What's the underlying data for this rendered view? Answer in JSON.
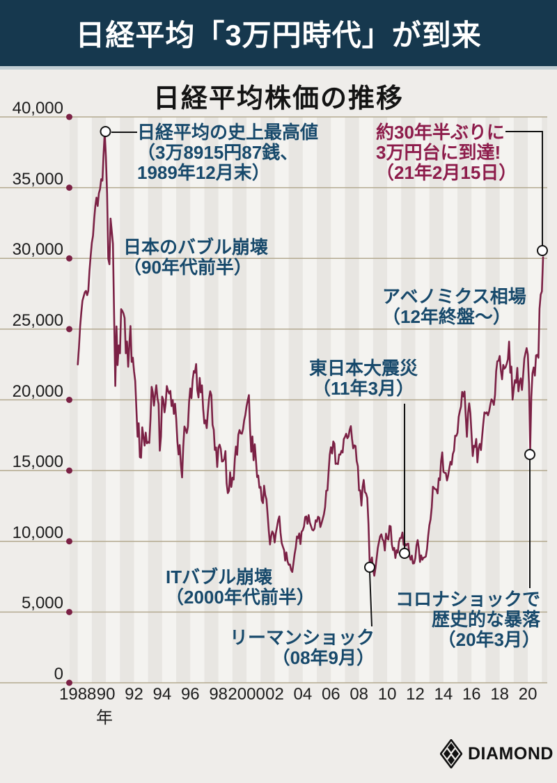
{
  "banner": {
    "title": "日経平均「3万円時代」が到来"
  },
  "chart": {
    "title": "日経平均株価の推移",
    "y_axis": {
      "labels": [
        "40,000",
        "35,000",
        "30,000",
        "25,000",
        "20,000",
        "15,000",
        "10,000",
        "5,000",
        "0"
      ]
    },
    "x_axis": {
      "labels": [
        "1988",
        "90",
        "92",
        "94",
        "96",
        "98",
        "2000",
        "02",
        "04",
        "06",
        "08",
        "10",
        "12",
        "14",
        "16",
        "18",
        "20"
      ],
      "unit": "年"
    },
    "annotations": {
      "peak": {
        "lines": [
          "日経平均の史上最高値",
          "（3万8915円87銭、",
          "1989年12月末）"
        ]
      },
      "reach30k": {
        "lines": [
          "約30年半ぶりに",
          "3万円台に到達!",
          "（21年2月15日）"
        ]
      },
      "bubble": {
        "lines": [
          "日本のバブル崩壊",
          "（90年代前半）"
        ]
      },
      "abenomics": {
        "lines": [
          "アベノミクス相場",
          "（12年終盤～）"
        ]
      },
      "tohoku": {
        "lines": [
          "東日本大震災",
          "（11年3月）"
        ]
      },
      "itbubble": {
        "lines": [
          "ITバブル崩壊",
          "（2000年代前半）"
        ]
      },
      "lehman": {
        "lines": [
          "リーマンショック",
          "（08年9月）"
        ]
      },
      "corona": {
        "lines": [
          "コロナショックで",
          "歴史的な暴落",
          "（20年3月）"
        ]
      }
    }
  },
  "footer": {
    "logo_text": "DIAMOND"
  },
  "colors": {
    "banner_bg": "#16384e",
    "line": "#7b2145",
    "dot": "#7b2145",
    "grid": "#b3a98f",
    "stripe_light": "#f4f3f0",
    "stripe_dark": "#e8e6e2",
    "blue_text": "#17496b",
    "red_text": "#8d1c4b",
    "callout_stroke": "#111111",
    "callout_fill": "#ffffff"
  },
  "chart_data": {
    "type": "line",
    "title": "日経平均株価の推移",
    "xlabel": "年",
    "ylabel": "",
    "ylim": [
      0,
      40000
    ],
    "y_ticks": [
      0,
      5000,
      10000,
      15000,
      20000,
      25000,
      30000,
      35000,
      40000
    ],
    "x_tick_years": [
      1988,
      1990,
      1992,
      1994,
      1996,
      1998,
      2000,
      2002,
      2004,
      2006,
      2008,
      2010,
      2012,
      2014,
      2016,
      2018,
      2020
    ],
    "x_range_years": [
      1988,
      2021.17
    ],
    "grid": true,
    "legend": "none",
    "series": [
      {
        "name": "日経平均株価",
        "frequency": "monthly",
        "start": "1988-01",
        "end": "2021-02",
        "values": [
          22500,
          23700,
          25200,
          26200,
          27000,
          27300,
          27600,
          27700,
          27400,
          27700,
          29100,
          30159,
          31100,
          31600,
          32800,
          33700,
          34300,
          33700,
          34600,
          34900,
          35600,
          35500,
          37300,
          38916,
          37189,
          34592,
          29980,
          29585,
          32818,
          31940,
          31036,
          25978,
          20984,
          25194,
          22455,
          23849,
          23293,
          26409,
          26292,
          26111,
          25790,
          23291,
          24121,
          22336,
          23916,
          25222,
          22687,
          22984,
          22023,
          21339,
          19346,
          17391,
          18348,
          15952,
          15910,
          18061,
          17399,
          16767,
          17684,
          16925,
          17024,
          16953,
          18591,
          20919,
          20552,
          19590,
          20380,
          21027,
          20106,
          19703,
          16406,
          17417,
          20229,
          19997,
          19112,
          19725,
          20974,
          20644,
          20449,
          20629,
          19564,
          19990,
          19007,
          19723,
          18650,
          17053,
          16140,
          16807,
          15437,
          14517,
          16678,
          18117,
          17913,
          17655,
          18109,
          19868,
          20813,
          20118,
          21407,
          22041,
          21925,
          22531,
          20693,
          20167,
          21556,
          20526,
          21021,
          19361,
          18330,
          18557,
          18003,
          19151,
          20069,
          20605,
          20331,
          18229,
          17888,
          16459,
          16636,
          15259,
          16628,
          16832,
          16527,
          15641,
          15671,
          15830,
          16379,
          14108,
          13406,
          13565,
          14884,
          13842,
          14500,
          14368,
          15837,
          16702,
          16112,
          17530,
          17861,
          17633,
          17605,
          17943,
          18559,
          18934,
          19540,
          19959,
          20337,
          17974,
          16332,
          17411,
          15727,
          16861,
          15747,
          14540,
          14649,
          13786,
          13844,
          12884,
          12700,
          13934,
          13262,
          12969,
          11861,
          10713,
          9775,
          10366,
          10697,
          10543,
          9920,
          10588,
          11025,
          11493,
          11764,
          10622,
          9878,
          9619,
          9383,
          8640,
          9216,
          8579,
          8340,
          8363,
          7973,
          7831,
          8425,
          9083,
          9563,
          10343,
          10219,
          10559,
          9806,
          10677,
          10784,
          11042,
          11715,
          11761,
          11236,
          11859,
          11326,
          11082,
          10824,
          10771,
          10899,
          11489,
          11388,
          11740,
          11669,
          11009,
          11277,
          11584,
          11900,
          12414,
          13574,
          13606,
          14872,
          16111,
          16649,
          16205,
          17060,
          16906,
          15467,
          15505,
          15457,
          16141,
          16128,
          16399,
          16274,
          17226,
          17383,
          17604,
          17288,
          17400,
          17876,
          18138,
          17249,
          16569,
          16786,
          16738,
          15681,
          15308,
          13592,
          13603,
          12526,
          13850,
          14339,
          13481,
          13377,
          13073,
          11260,
          8577,
          8512,
          8860,
          7994,
          7568,
          8110,
          8828,
          9523,
          9958,
          10357,
          10493,
          10133,
          10035,
          9346,
          10546,
          10198,
          10126,
          11090,
          11057,
          9769,
          9383,
          9537,
          8824,
          9369,
          9202,
          9937,
          10229,
          10237,
          10624,
          9755,
          9850,
          9694,
          9816,
          9833,
          8955,
          8700,
          8988,
          8435,
          8455,
          8803,
          9723,
          10084,
          9521,
          8543,
          9007,
          8695,
          8840,
          8870,
          8928,
          9446,
          10395,
          11139,
          11559,
          12398,
          13861,
          13775,
          13677,
          13668,
          13389,
          14456,
          14328,
          15662,
          16291,
          14915,
          14841,
          14828,
          14304,
          14632,
          15162,
          15621,
          15425,
          16174,
          16414,
          17460,
          17451,
          17674,
          18798,
          19207,
          19520,
          20563,
          20236,
          20585,
          18890,
          17388,
          19083,
          19747,
          19034,
          17518,
          16027,
          16759,
          16666,
          17235,
          15576,
          16569,
          16887,
          16450,
          17425,
          18308,
          19114,
          19041,
          19119,
          18909,
          19197,
          19651,
          20033,
          19925,
          19646,
          20356,
          22012,
          22725,
          22765,
          23098,
          22068,
          21454,
          22468,
          22202,
          22305,
          22554,
          22865,
          24120,
          21920,
          22351,
          20015,
          20773,
          21385,
          21206,
          22259,
          20601,
          21276,
          21522,
          20704,
          21756,
          22927,
          23294,
          23657,
          23205,
          21143,
          16553,
          20194,
          21878,
          22288,
          21710,
          23140,
          23185,
          22977,
          26434,
          27444,
          27663,
          30084
        ]
      }
    ],
    "events": [
      {
        "label": "日経平均の史上最高値",
        "value": 38915.87,
        "date": "1989年12月末"
      },
      {
        "label": "約30年半ぶりに3万円台に到達!",
        "value": 30084,
        "date": "21年2月15日"
      },
      {
        "label": "日本のバブル崩壊",
        "date": "90年代前半"
      },
      {
        "label": "アベノミクス相場",
        "date": "12年終盤～"
      },
      {
        "label": "東日本大震災",
        "date": "11年3月"
      },
      {
        "label": "ITバブル崩壊",
        "date": "2000年代前半"
      },
      {
        "label": "リーマンショック",
        "date": "08年9月"
      },
      {
        "label": "コロナショックで歴史的な暴落",
        "date": "20年3月"
      }
    ]
  }
}
